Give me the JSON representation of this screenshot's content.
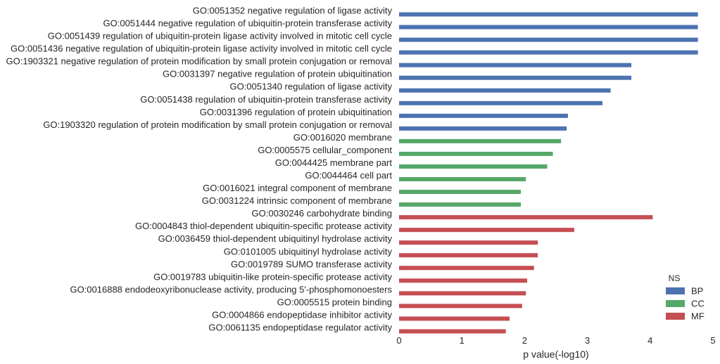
{
  "chart_data": {
    "type": "bar",
    "orientation": "horizontal",
    "xlabel": "p value(-log10)",
    "xlim": [
      0,
      5
    ],
    "xticks": [
      "0",
      "1",
      "2",
      "3",
      "4",
      "5"
    ],
    "grid": false,
    "legend": {
      "title": "NS",
      "placement": "bottom-right",
      "entries": [
        {
          "name": "BP",
          "color": "#4c72b0"
        },
        {
          "name": "CC",
          "color": "#55a868"
        },
        {
          "name": "MF",
          "color": "#c44e52"
        }
      ]
    },
    "categories": [
      {
        "label": "GO:0051352 negative regulation of ligase activity",
        "value": 4.76,
        "group": "BP"
      },
      {
        "label": "GO:0051444 negative regulation of ubiquitin-protein transferase activity",
        "value": 4.76,
        "group": "BP"
      },
      {
        "label": "GO:0051439 regulation of ubiquitin-protein ligase activity involved in mitotic cell cycle",
        "value": 4.76,
        "group": "BP"
      },
      {
        "label": "GO:0051436 negative regulation of ubiquitin-protein ligase activity involved in mitotic cell cycle",
        "value": 4.76,
        "group": "BP"
      },
      {
        "label": "GO:1903321 negative regulation of protein modification by small protein conjugation or removal",
        "value": 3.7,
        "group": "BP"
      },
      {
        "label": "GO:0031397 negative regulation of protein ubiquitination",
        "value": 3.7,
        "group": "BP"
      },
      {
        "label": "GO:0051340 regulation of ligase activity",
        "value": 3.37,
        "group": "BP"
      },
      {
        "label": "GO:0051438 regulation of ubiquitin-protein transferase activity",
        "value": 3.24,
        "group": "BP"
      },
      {
        "label": "GO:0031396 regulation of protein ubiquitination",
        "value": 2.69,
        "group": "BP"
      },
      {
        "label": "GO:1903320 regulation of protein modification by small protein conjugation or removal",
        "value": 2.67,
        "group": "BP"
      },
      {
        "label": "GO:0016020 membrane",
        "value": 2.58,
        "group": "CC"
      },
      {
        "label": "GO:0005575 cellular_component",
        "value": 2.45,
        "group": "CC"
      },
      {
        "label": "GO:0044425 membrane part",
        "value": 2.36,
        "group": "CC"
      },
      {
        "label": "GO:0044464 cell part",
        "value": 2.02,
        "group": "CC"
      },
      {
        "label": "GO:0016021 integral component of membrane",
        "value": 1.94,
        "group": "CC"
      },
      {
        "label": "GO:0031224 intrinsic component of membrane",
        "value": 1.94,
        "group": "CC"
      },
      {
        "label": "GO:0030246 carbohydrate binding",
        "value": 4.04,
        "group": "MF"
      },
      {
        "label": "GO:0004843 thiol-dependent ubiquitin-specific protease activity",
        "value": 2.79,
        "group": "MF"
      },
      {
        "label": "GO:0036459 thiol-dependent ubiquitinyl hydrolase activity",
        "value": 2.21,
        "group": "MF"
      },
      {
        "label": "GO:0101005 ubiquitinyl hydrolase activity",
        "value": 2.21,
        "group": "MF"
      },
      {
        "label": "GO:0019789 SUMO transferase activity",
        "value": 2.15,
        "group": "MF"
      },
      {
        "label": "GO:0019783 ubiquitin-like protein-specific protease activity",
        "value": 2.04,
        "group": "MF"
      },
      {
        "label": "GO:0016888 endodeoxyribonuclease activity, producing 5'-phosphomonoesters",
        "value": 2.02,
        "group": "MF"
      },
      {
        "label": "GO:0005515 protein binding",
        "value": 1.96,
        "group": "MF"
      },
      {
        "label": "GO:0004866 endopeptidase inhibitor activity",
        "value": 1.76,
        "group": "MF"
      },
      {
        "label": "GO:0061135 endopeptidase regulator activity",
        "value": 1.7,
        "group": "MF"
      }
    ]
  }
}
